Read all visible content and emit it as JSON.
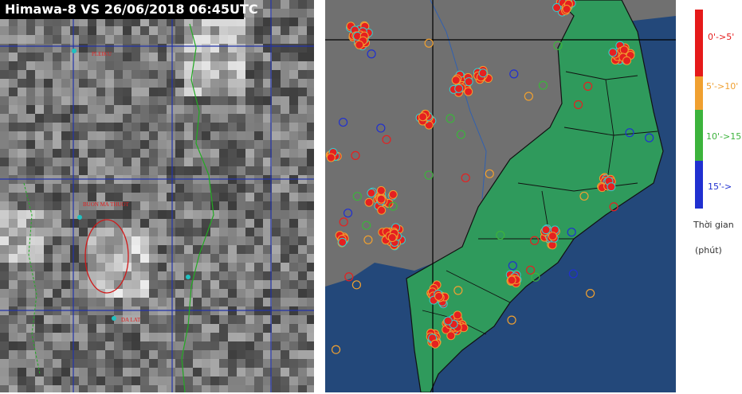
{
  "satellite": {
    "title": "Himawa-8 VS 26/06/2018 06:45UTC",
    "places": [
      "PLEIKU",
      "BUON MA THUOT",
      "DA LAT"
    ]
  },
  "legend": {
    "labels": [
      "0'->5'",
      "5'->10'",
      "10'->15'",
      "15'->"
    ],
    "caption": [
      "Thời gian",
      "(phút)"
    ]
  }
}
